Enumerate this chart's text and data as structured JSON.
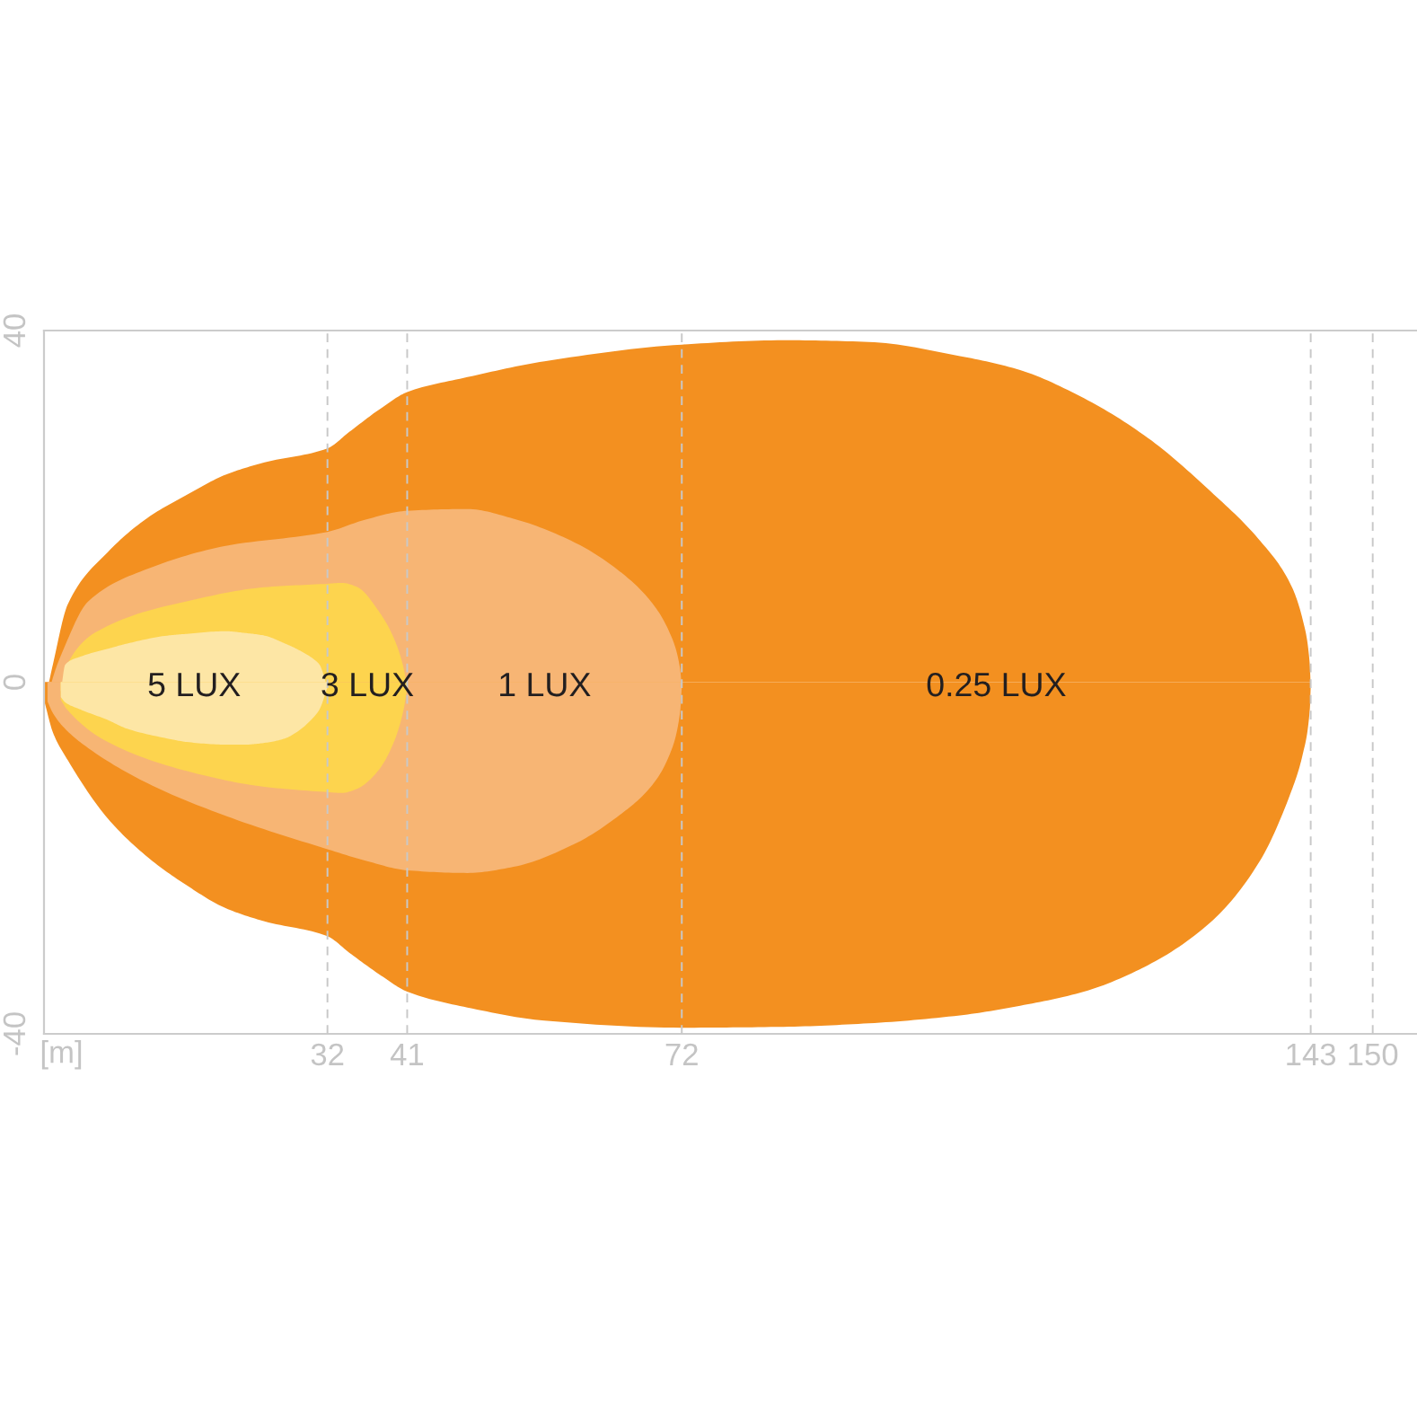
{
  "chart_data": {
    "type": "area",
    "xlabel": "[m]",
    "xlim": [
      0,
      155
    ],
    "ylim": [
      -40,
      40
    ],
    "xticks": [
      32,
      41,
      72,
      143,
      150
    ],
    "yticks": [
      -40,
      0,
      40
    ],
    "grid": "x",
    "series": [
      {
        "name": "0.25 LUX",
        "color": "#f39020",
        "x": [
          0.1,
          1.0,
          2.7,
          7.2,
          11.7,
          16.1,
          20.5,
          24.9,
          32,
          34.5,
          38.1,
          41,
          47.8,
          56.5,
          72,
          83.5,
          93.1,
          103.4,
          110.2,
          117.4,
          124.6,
          131.7,
          137.1,
          140.7,
          142.1,
          142.9,
          143
        ],
        "values": [
          -2.2,
          2.0,
          8.9,
          14.8,
          18.7,
          21.3,
          23.6,
          25.0,
          26.6,
          28.5,
          31.2,
          33.0,
          34.7,
          36.5,
          38.4,
          38.9,
          38.7,
          37.1,
          35.5,
          32.3,
          27.8,
          21.7,
          16.3,
          11.2,
          7.1,
          2.0,
          -0.6
        ]
      },
      {
        "color": "#f39020",
        "x": [
          0.1,
          1.0,
          2.7,
          7.2,
          11.7,
          16.1,
          20.5,
          24.9,
          32,
          34.5,
          38.1,
          41,
          47.8,
          56.5,
          72,
          83.5,
          93.1,
          103.4,
          110.2,
          117.4,
          124.6,
          131.7,
          137.1,
          140.7,
          142.1,
          142.9,
          143
        ],
        "values": [
          -2.4,
          -5.7,
          -8.9,
          -15.5,
          -19.9,
          -23.1,
          -25.7,
          -27.2,
          -28.9,
          -30.8,
          -33.4,
          -35.2,
          -37.0,
          -38.5,
          -39.3,
          -39.2,
          -38.8,
          -37.9,
          -36.8,
          -35.2,
          -32.2,
          -27.3,
          -20.6,
          -12.7,
          -8.2,
          -3.1,
          -0.6
        ]
      },
      {
        "name": "1 LUX",
        "color": "#f7b574",
        "x": [
          0.4,
          1.0,
          2.1,
          5.0,
          11.7,
          20.5,
          32,
          36.3,
          41,
          47.8,
          53.0,
          59.9,
          65.0,
          68.5,
          70.6,
          71.8,
          72
        ],
        "values": [
          -2.0,
          0.5,
          3.5,
          9.2,
          12.9,
          15.5,
          17.1,
          18.5,
          19.5,
          19.7,
          18.6,
          15.9,
          12.6,
          9.2,
          5.7,
          1.6,
          -0.6
        ]
      },
      {
        "color": "#f7b574",
        "x": [
          0.4,
          1.0,
          2.1,
          5.0,
          11.7,
          20.5,
          32,
          36.3,
          41,
          47.8,
          53.0,
          59.9,
          65.0,
          68.5,
          70.6,
          71.8,
          72
        ],
        "values": [
          -2.2,
          -3.5,
          -5.0,
          -7.5,
          -11.5,
          -15.2,
          -19.0,
          -20.3,
          -21.4,
          -21.7,
          -21.0,
          -18.4,
          -15.1,
          -11.9,
          -8.3,
          -3.5,
          -0.6
        ]
      },
      {
        "name": "3 LUX",
        "color": "#fdd44e",
        "x": [
          1.9,
          2.6,
          7.2,
          16.1,
          24.9,
          32,
          33.6,
          35.4,
          37.7,
          39.5,
          40.6,
          41
        ],
        "values": [
          -1.6,
          2.0,
          6.4,
          9.2,
          10.8,
          11.2,
          11.3,
          10.8,
          8.2,
          5.0,
          1.6,
          -0.6
        ]
      },
      {
        "color": "#fdd44e",
        "x": [
          1.9,
          2.6,
          7.2,
          16.1,
          24.9,
          32,
          33.6,
          35.4,
          37.7,
          39.5,
          40.6,
          41
        ],
        "values": [
          -2.0,
          -3.1,
          -6.8,
          -10.1,
          -11.9,
          -12.5,
          -12.6,
          -12.1,
          -10.1,
          -6.8,
          -3.1,
          -0.6
        ]
      },
      {
        "name": "5 LUX",
        "color": "#fde6a5",
        "x": [
          1.9,
          2.4,
          4.1,
          7.2,
          9.4,
          13.9,
          16.1,
          20.5,
          22.7,
          24.9,
          27.2,
          28.5,
          30.6,
          31.1,
          32
        ],
        "values": [
          -1.1,
          2.0,
          2.9,
          3.8,
          4.4,
          5.3,
          5.5,
          5.8,
          5.6,
          5.3,
          4.4,
          3.8,
          2.5,
          2.0,
          -0.6
        ]
      },
      {
        "color": "#fde6a5",
        "x": [
          1.9,
          2.4,
          4.1,
          7.2,
          9.4,
          13.9,
          16.1,
          20.5,
          22.7,
          24.9,
          27.2,
          28.5,
          30.6,
          31.1,
          32
        ],
        "values": [
          -1.7,
          -2.3,
          -3.1,
          -4.3,
          -5.3,
          -6.4,
          -6.8,
          -7.1,
          -7.1,
          -6.9,
          -6.4,
          -5.7,
          -3.8,
          -3.1,
          -0.6
        ]
      }
    ]
  }
}
